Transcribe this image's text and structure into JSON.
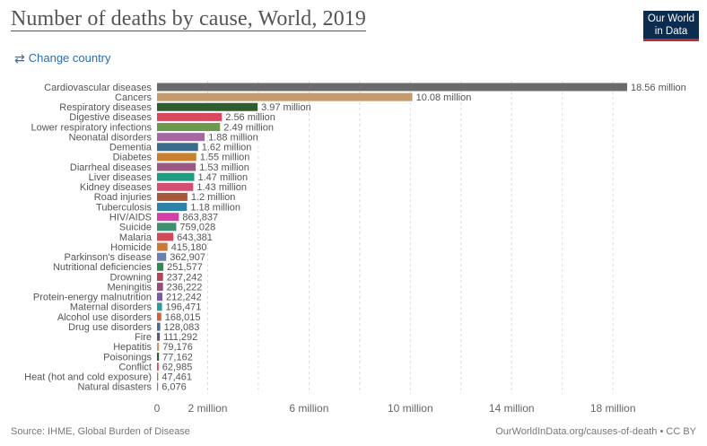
{
  "header": {
    "title": "Number of deaths by cause, World, 2019",
    "logo_line1": "Our World",
    "logo_line2": "in Data",
    "change_country_label": "Change country",
    "change_country_icon": "swap-arrows-icon"
  },
  "footer": {
    "source": "Source: IHME, Global Burden of Disease",
    "credit": "OurWorldInData.org/causes-of-death • CC BY"
  },
  "chart_data": {
    "type": "bar",
    "orientation": "horizontal",
    "title": "Number of deaths by cause, World, 2019",
    "xlim": [
      0,
      18560000
    ],
    "x_ticks": [
      {
        "value": 0,
        "label": "0"
      },
      {
        "value": 2000000,
        "label": "2 million"
      },
      {
        "value": 6000000,
        "label": "6 million"
      },
      {
        "value": 10000000,
        "label": "10 million"
      },
      {
        "value": 14000000,
        "label": "14 million"
      },
      {
        "value": 18000000,
        "label": "18 million"
      }
    ],
    "gridlines_at": [
      2000000,
      4000000,
      6000000,
      8000000,
      10000000,
      12000000,
      14000000,
      16000000,
      18000000
    ],
    "grid": true,
    "bars": [
      {
        "label": "Cardiovascular diseases",
        "value": 18560000,
        "value_label": "18.56 million",
        "color": "#6b6b6b"
      },
      {
        "label": "Cancers",
        "value": 10080000,
        "value_label": "10.08 million",
        "color": "#c49b6c"
      },
      {
        "label": "Respiratory diseases",
        "value": 3970000,
        "value_label": "3.97 million",
        "color": "#2e5e2e"
      },
      {
        "label": "Digestive diseases",
        "value": 2560000,
        "value_label": "2.56 million",
        "color": "#d8485e"
      },
      {
        "label": "Lower respiratory infections",
        "value": 2490000,
        "value_label": "2.49 million",
        "color": "#6d9a4c"
      },
      {
        "label": "Neonatal disorders",
        "value": 1880000,
        "value_label": "1.88 million",
        "color": "#a668a3"
      },
      {
        "label": "Dementia",
        "value": 1620000,
        "value_label": "1.62 million",
        "color": "#3b6b8f"
      },
      {
        "label": "Diabetes",
        "value": 1550000,
        "value_label": "1.55 million",
        "color": "#c9802e"
      },
      {
        "label": "Diarrheal diseases",
        "value": 1530000,
        "value_label": "1.53 million",
        "color": "#9a5a82"
      },
      {
        "label": "Liver diseases",
        "value": 1470000,
        "value_label": "1.47 million",
        "color": "#1e9c7e"
      },
      {
        "label": "Kidney diseases",
        "value": 1430000,
        "value_label": "1.43 million",
        "color": "#d34f72"
      },
      {
        "label": "Road injuries",
        "value": 1200000,
        "value_label": "1.2 million",
        "color": "#a8593c"
      },
      {
        "label": "Tuberculosis",
        "value": 1180000,
        "value_label": "1.18 million",
        "color": "#2d82a8"
      },
      {
        "label": "HIV/AIDS",
        "value": 863837,
        "value_label": "863,837",
        "color": "#d43fa8"
      },
      {
        "label": "Suicide",
        "value": 759028,
        "value_label": "759,028",
        "color": "#3f8f73"
      },
      {
        "label": "Malaria",
        "value": 643381,
        "value_label": "643,381",
        "color": "#d24a5a"
      },
      {
        "label": "Homicide",
        "value": 415180,
        "value_label": "415,180",
        "color": "#c87a3a"
      },
      {
        "label": "Parkinson's disease",
        "value": 362907,
        "value_label": "362,907",
        "color": "#6a80b0"
      },
      {
        "label": "Nutritional deficiencies",
        "value": 251577,
        "value_label": "251,577",
        "color": "#2e8b57"
      },
      {
        "label": "Drowning",
        "value": 237242,
        "value_label": "237,242",
        "color": "#b0455a"
      },
      {
        "label": "Meningitis",
        "value": 236222,
        "value_label": "236,222",
        "color": "#9a4a7a"
      },
      {
        "label": "Protein-energy malnutrition",
        "value": 212242,
        "value_label": "212,242",
        "color": "#7a5aa8"
      },
      {
        "label": "Maternal disorders",
        "value": 196471,
        "value_label": "196,471",
        "color": "#2b9c9c"
      },
      {
        "label": "Alcohol use disorders",
        "value": 168015,
        "value_label": "168,015",
        "color": "#d2603a"
      },
      {
        "label": "Drug use disorders",
        "value": 128083,
        "value_label": "128,083",
        "color": "#4a6a9a"
      },
      {
        "label": "Fire",
        "value": 111292,
        "value_label": "111,292",
        "color": "#555a7a"
      },
      {
        "label": "Hepatitis",
        "value": 79176,
        "value_label": "79,176",
        "color": "#c49b6c"
      },
      {
        "label": "Poisonings",
        "value": 77162,
        "value_label": "77,162",
        "color": "#2e5e2e"
      },
      {
        "label": "Conflict",
        "value": 62985,
        "value_label": "62,985",
        "color": "#d8485e"
      },
      {
        "label": "Heat (hot and cold exposure)",
        "value": 47461,
        "value_label": "47,461",
        "color": "#6d9a4c"
      },
      {
        "label": "Natural disasters",
        "value": 6076,
        "value_label": "6,076",
        "color": "#a668a3"
      }
    ]
  }
}
